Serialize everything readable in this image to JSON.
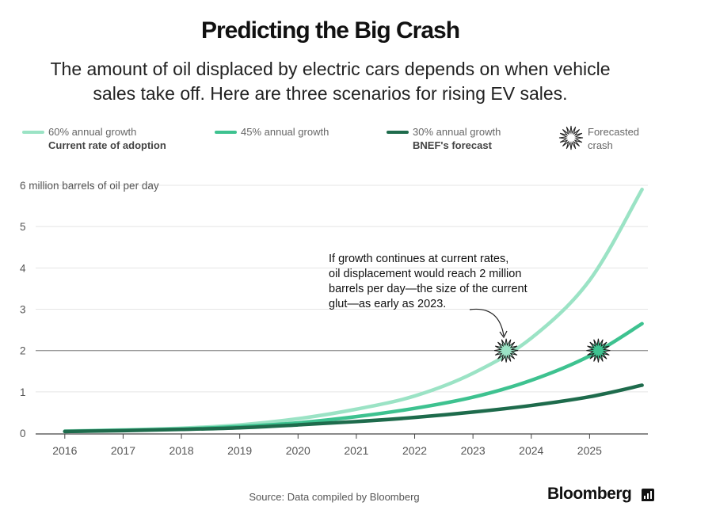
{
  "colors": {
    "series_60": "#9be3c5",
    "series_45": "#3ec290",
    "series_30": "#1e6b4c",
    "grid": "#e4e4e4",
    "threshold": "#999999",
    "axis": "#444444"
  },
  "legend": {
    "crash_icon": "starburst-icon",
    "crash_label_line1": "Forecasted",
    "crash_label_line2": "crash"
  },
  "annotation": {
    "lines": [
      "If growth continues at current rates,",
      "oil displacement would reach 2 million",
      "barrels per day—the size of the current",
      "glut—as early as 2023."
    ]
  },
  "footer": {
    "source": "Source: Data compiled by Bloomberg",
    "brand": "Bloomberg",
    "brand_icon": "bloomberg-terminal-icon"
  },
  "chart_data": {
    "type": "line",
    "title": "Predicting the Big Crash",
    "subtitle_line1": "The amount of oil displaced by electric cars depends on when vehicle",
    "subtitle_line2": "sales take off. Here are three scenarios for rising EV sales.",
    "xlabel": "",
    "ylabel": "6 million barrels of oil per day",
    "categories": [
      "2016",
      "2017",
      "2018",
      "2019",
      "2020",
      "2021",
      "2022",
      "2023",
      "2024",
      "2025"
    ],
    "x_range": [
      2015.5,
      2026.0
    ],
    "ylim": [
      0,
      6
    ],
    "y_ticks": [
      "0",
      "1",
      "2",
      "3",
      "4",
      "5"
    ],
    "grid": true,
    "legend_position": "top",
    "threshold": 2,
    "series": [
      {
        "name": "60% annual growth",
        "note": "Current rate of adoption",
        "x": [
          2016,
          2017,
          2018,
          2019,
          2020,
          2021,
          2022,
          2023,
          2024,
          2025,
          2025.9
        ],
        "y": [
          0.05,
          0.08,
          0.12,
          0.2,
          0.35,
          0.58,
          0.9,
          1.45,
          2.3,
          3.7,
          5.9
        ]
      },
      {
        "name": "45% annual growth",
        "note": "",
        "x": [
          2016,
          2017,
          2018,
          2019,
          2020,
          2021,
          2022,
          2023,
          2024,
          2025,
          2025.9
        ],
        "y": [
          0.04,
          0.07,
          0.1,
          0.16,
          0.25,
          0.4,
          0.6,
          0.87,
          1.28,
          1.87,
          2.65
        ]
      },
      {
        "name": "30% annual growth",
        "note": "BNEF's forecast",
        "x": [
          2016,
          2017,
          2018,
          2019,
          2020,
          2021,
          2022,
          2023,
          2024,
          2025,
          2025.9
        ],
        "y": [
          0.04,
          0.06,
          0.09,
          0.13,
          0.2,
          0.28,
          0.38,
          0.51,
          0.67,
          0.88,
          1.16
        ]
      }
    ],
    "crash_points": [
      {
        "x": 2023.57,
        "y": 2
      },
      {
        "x": 2025.15,
        "y": 2
      }
    ]
  }
}
